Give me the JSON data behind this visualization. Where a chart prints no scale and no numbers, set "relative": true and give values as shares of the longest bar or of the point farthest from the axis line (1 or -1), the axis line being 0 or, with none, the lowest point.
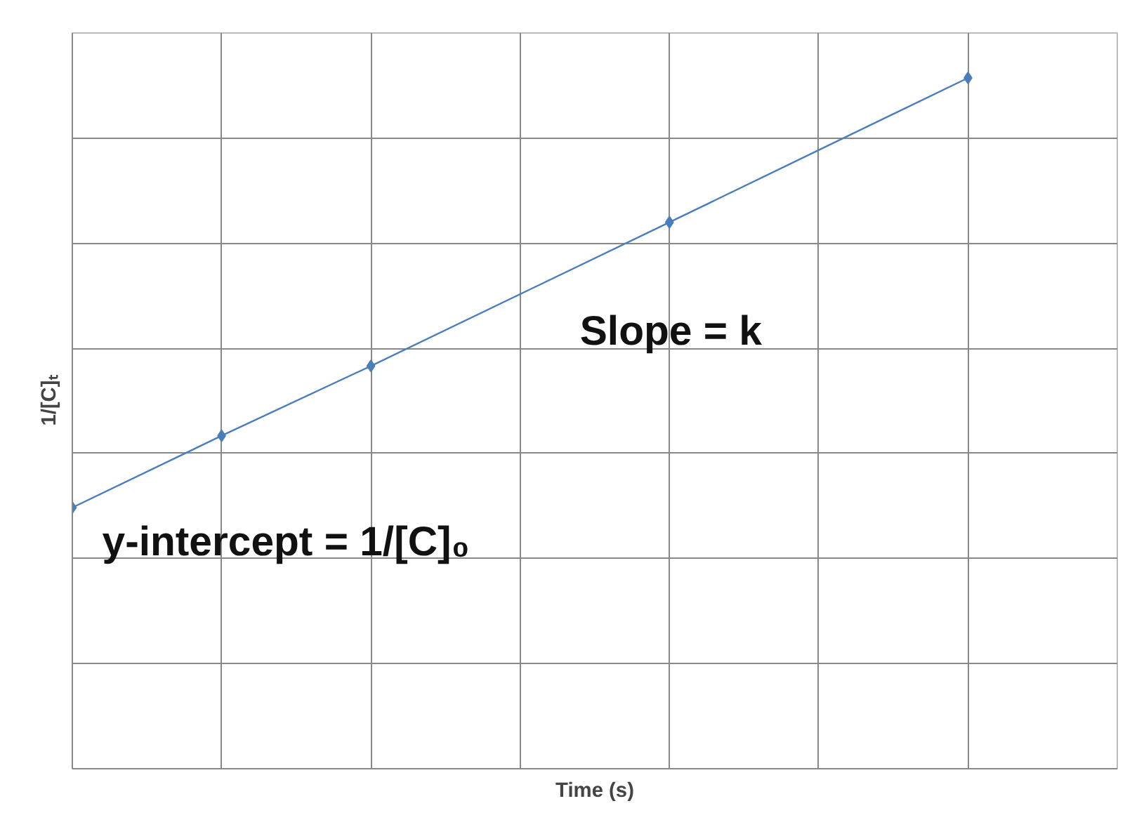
{
  "chart_data": {
    "type": "line",
    "relative": true,
    "xlabel": "Time (s)",
    "ylabel": "1/[C]ₜ",
    "categories": [
      null,
      null,
      null,
      null,
      null,
      null,
      null,
      null
    ],
    "series": [
      {
        "color": "#4a7ebb",
        "values": [
          0.378,
          0.482,
          0.583,
          null,
          0.791,
          null,
          1.0,
          null
        ]
      }
    ],
    "marker": "diamond",
    "line_style": "solid",
    "annotations": [
      "Slope = k",
      "y-intercept = 1/[C]₀"
    ],
    "grid": true
  }
}
